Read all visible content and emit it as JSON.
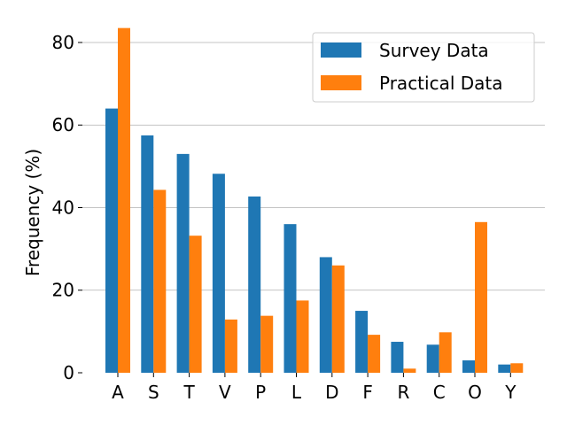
{
  "chart_data": {
    "type": "bar",
    "title": "",
    "xlabel": "",
    "ylabel": "Frequency (%)",
    "ylim": [
      0,
      86
    ],
    "yticks": [
      0,
      20,
      40,
      60,
      80
    ],
    "grid": "horizontal",
    "legend_position": "top-right",
    "categories": [
      "A",
      "S",
      "T",
      "V",
      "P",
      "L",
      "D",
      "F",
      "R",
      "C",
      "O",
      "Y"
    ],
    "series": [
      {
        "name": "Survey Data",
        "color": "#1f77b4",
        "values": [
          64.0,
          57.5,
          53.0,
          48.2,
          42.7,
          36.0,
          28.0,
          15.0,
          7.5,
          6.8,
          3.0,
          2.0
        ]
      },
      {
        "name": "Practical Data",
        "color": "#ff7f0e",
        "values": [
          83.5,
          44.3,
          33.2,
          12.9,
          13.8,
          17.5,
          26.0,
          9.2,
          1.0,
          9.8,
          36.5,
          2.3
        ]
      }
    ]
  }
}
